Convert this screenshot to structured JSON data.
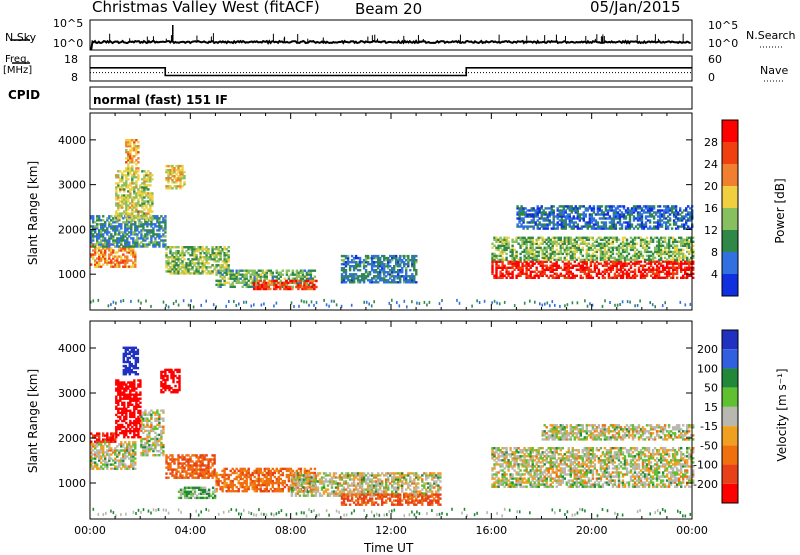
{
  "header": {
    "station": "Christmas Valley West (fitACF)",
    "beam": "Beam 20",
    "date": "05/Jan/2015"
  },
  "summary": {
    "left_labels": {
      "nsky": "N.Sky",
      "freq": "Freq.",
      "freq_unit": "[MHz]",
      "cpid": "CPID"
    },
    "right_labels": {
      "nsearch": "N.Search",
      "nave": "Nave"
    },
    "noise_ticks_left": [
      "10^5",
      "10^0"
    ],
    "noise_ticks_right": [
      "10^5",
      "10^0"
    ],
    "freq_ticks": [
      "18",
      "8"
    ],
    "nave_ticks": [
      "60",
      "0"
    ],
    "cpid_text": "normal (fast) 151 IF",
    "freq_steps": [
      {
        "t_start": 0.0,
        "t_end": 3.0,
        "freq": 13.3
      },
      {
        "t_start": 3.0,
        "t_end": 15.0,
        "freq": 10.2
      },
      {
        "t_start": 15.0,
        "t_end": 24.0,
        "freq": 13.3
      }
    ],
    "nave_dotted": 20
  },
  "colors": {
    "power": [
      "#1030e0",
      "#3070e0",
      "#308848",
      "#88c060",
      "#f0d040",
      "#f08030",
      "#f04010",
      "#ff0000"
    ],
    "velocity": [
      "#2030c0",
      "#3060e0",
      "#208838",
      "#60c030",
      "#b8b8b0",
      "#f0a020",
      "#f07010",
      "#e84018",
      "#ff0000"
    ]
  },
  "chart_data": [
    {
      "type": "heatmap",
      "name": "power",
      "xlabel": "",
      "ylabel": "Slant Range [km]",
      "xlim": [
        0,
        24
      ],
      "ylim": [
        200,
        4600
      ],
      "yticks": [
        1000,
        2000,
        3000,
        4000
      ],
      "colorbar": {
        "label": "Power [dB]",
        "ticks": [
          4,
          8,
          12,
          16,
          20,
          24,
          28
        ],
        "range": [
          0,
          32
        ]
      },
      "echo_regions": [
        {
          "t": [
            0.0,
            1.8
          ],
          "r": [
            1150,
            1650
          ],
          "value": 22
        },
        {
          "t": [
            0.0,
            3.0
          ],
          "r": [
            1600,
            2300
          ],
          "value": 9
        },
        {
          "t": [
            1.0,
            2.5
          ],
          "r": [
            2200,
            3300
          ],
          "value": 16
        },
        {
          "t": [
            1.4,
            1.9
          ],
          "r": [
            3300,
            4000
          ],
          "value": 20
        },
        {
          "t": [
            3.0,
            3.8
          ],
          "r": [
            2900,
            3400
          ],
          "value": 18
        },
        {
          "t": [
            3.0,
            5.5
          ],
          "r": [
            1000,
            1600
          ],
          "value": 14
        },
        {
          "t": [
            5.0,
            9.0
          ],
          "r": [
            700,
            1100
          ],
          "value": 12
        },
        {
          "t": [
            6.5,
            9.0
          ],
          "r": [
            650,
            850
          ],
          "value": 26
        },
        {
          "t": [
            10.0,
            13.0
          ],
          "r": [
            800,
            1400
          ],
          "value": 8
        },
        {
          "t": [
            16.0,
            24.0
          ],
          "r": [
            900,
            1300
          ],
          "value": 29
        },
        {
          "t": [
            16.0,
            24.0
          ],
          "r": [
            1300,
            1800
          ],
          "value": 13
        },
        {
          "t": [
            17.0,
            24.0
          ],
          "r": [
            2000,
            2500
          ],
          "value": 6
        }
      ]
    },
    {
      "type": "heatmap",
      "name": "velocity",
      "xlabel": "Time UT",
      "ylabel": "Slant Range [km]",
      "xlim": [
        0,
        24
      ],
      "ylim": [
        200,
        4600
      ],
      "yticks": [
        1000,
        2000,
        3000,
        4000
      ],
      "xticks": [
        "00:00",
        "04:00",
        "08:00",
        "12:00",
        "16:00",
        "20:00",
        "00:00"
      ],
      "colorbar": {
        "label": "Velocity [m s⁻¹]",
        "ticks": [
          200,
          100,
          50,
          15,
          -15,
          -50,
          -100,
          -200
        ]
      },
      "echo_regions": [
        {
          "t": [
            0.0,
            1.8
          ],
          "r": [
            1300,
            1900
          ],
          "value": 0
        },
        {
          "t": [
            0.0,
            1.0
          ],
          "r": [
            1900,
            2100
          ],
          "value": -150
        },
        {
          "t": [
            1.0,
            2.0
          ],
          "r": [
            2000,
            3300
          ],
          "value": -200
        },
        {
          "t": [
            1.3,
            1.9
          ],
          "r": [
            3400,
            4000
          ],
          "value": 200
        },
        {
          "t": [
            2.8,
            3.6
          ],
          "r": [
            3000,
            3500
          ],
          "value": -250
        },
        {
          "t": [
            2.0,
            2.9
          ],
          "r": [
            1600,
            2600
          ],
          "value": 0
        },
        {
          "t": [
            3.0,
            5.0
          ],
          "r": [
            1100,
            1600
          ],
          "value": -70
        },
        {
          "t": [
            5.0,
            9.0
          ],
          "r": [
            800,
            1300
          ],
          "value": -60
        },
        {
          "t": [
            3.5,
            5.0
          ],
          "r": [
            650,
            900
          ],
          "value": 30
        },
        {
          "t": [
            8.0,
            14.0
          ],
          "r": [
            700,
            1200
          ],
          "value": 0
        },
        {
          "t": [
            10.0,
            14.0
          ],
          "r": [
            500,
            750
          ],
          "value": -80
        },
        {
          "t": [
            16.0,
            24.0
          ],
          "r": [
            900,
            1800
          ],
          "value": 0
        },
        {
          "t": [
            18.0,
            24.0
          ],
          "r": [
            1950,
            2300
          ],
          "value": 0
        }
      ]
    }
  ]
}
